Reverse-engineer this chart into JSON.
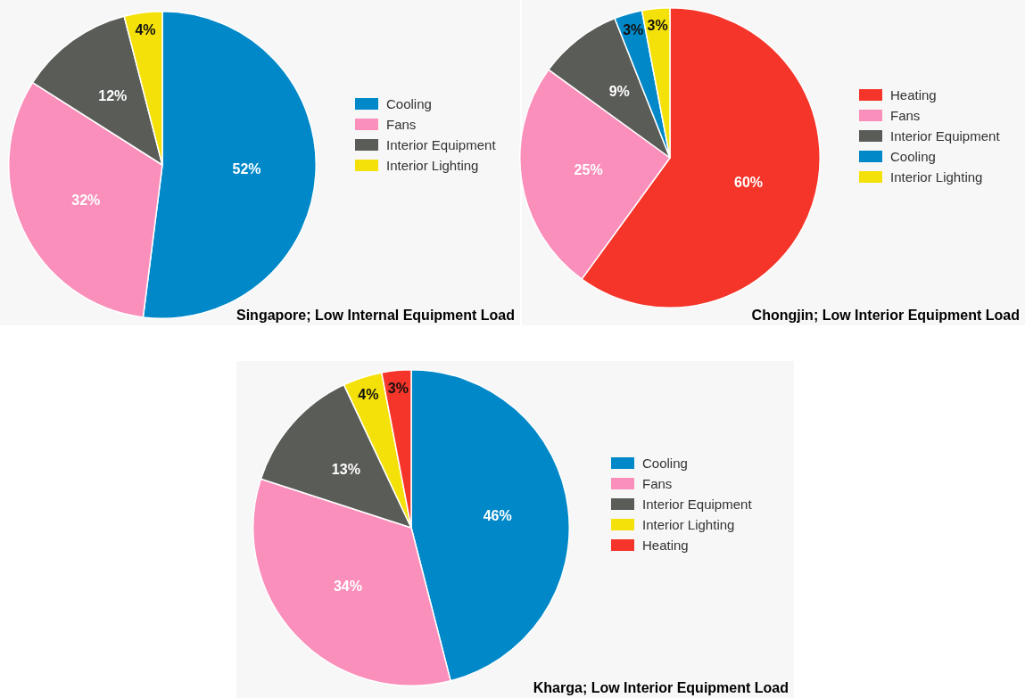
{
  "chart_data": [
    {
      "type": "pie",
      "title": "Singapore; Low Internal Equipment Load",
      "categories": [
        "Cooling",
        "Fans",
        "Interior Equipment",
        "Interior Lighting"
      ],
      "values": [
        52,
        32,
        12,
        4
      ],
      "colors": [
        "#0088c8",
        "#fa8fbb",
        "#5a5d57",
        "#f5e10a"
      ],
      "value_labels": [
        "52%",
        "32%",
        "12%",
        "4%"
      ],
      "legend": "right"
    },
    {
      "type": "pie",
      "title": "Chongjin; Low Interior Equipment Load",
      "categories": [
        "Heating",
        "Fans",
        "Interior Equipment",
        "Cooling",
        "Interior Lighting"
      ],
      "values": [
        60,
        25,
        9,
        3,
        3
      ],
      "colors": [
        "#f5352a",
        "#fa8fbb",
        "#5a5d57",
        "#0088c8",
        "#f5e10a"
      ],
      "value_labels": [
        "60%",
        "25%",
        "9%",
        "3%",
        "3%"
      ],
      "legend": "right"
    },
    {
      "type": "pie",
      "title": "Kharga; Low Interior Equipment Load",
      "categories": [
        "Cooling",
        "Fans",
        "Interior Equipment",
        "Interior Lighting",
        "Heating"
      ],
      "values": [
        46,
        34,
        13,
        4,
        3
      ],
      "colors": [
        "#0088c8",
        "#fa8fbb",
        "#5a5d57",
        "#f5e10a",
        "#f5352a"
      ],
      "value_labels": [
        "46%",
        "34%",
        "13%",
        "4%",
        "3%"
      ],
      "legend": "right"
    }
  ]
}
